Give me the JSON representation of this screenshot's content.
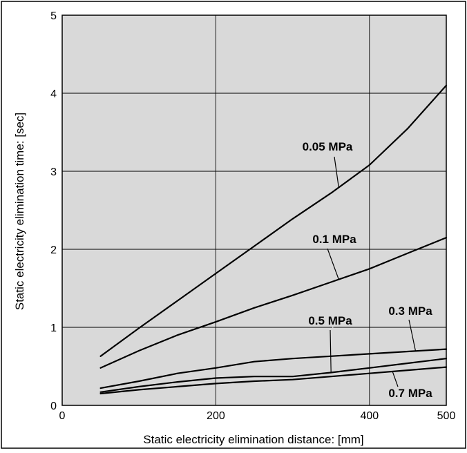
{
  "chart_data": {
    "type": "line",
    "xlabel": "Static electricity elimination distance: [mm]",
    "ylabel": "Static electricity elimination time: [sec]",
    "xlim": [
      0,
      500
    ],
    "ylim": [
      0,
      5
    ],
    "x_ticks": [
      "0",
      "200",
      "400",
      "500"
    ],
    "y_ticks": [
      "0",
      "1",
      "2",
      "3",
      "4",
      "5"
    ],
    "grid": true,
    "colors": {
      "plot_background": "#d9d9d9",
      "line": "#000000",
      "grid": "#000000"
    },
    "series": [
      {
        "name": "0.05 MPa",
        "x": [
          50,
          100,
          150,
          200,
          250,
          300,
          350,
          400,
          450,
          500
        ],
        "y": [
          0.63,
          0.99,
          1.34,
          1.69,
          2.04,
          2.39,
          2.72,
          3.08,
          3.55,
          4.1
        ]
      },
      {
        "name": "0.1 MPa",
        "x": [
          50,
          100,
          150,
          200,
          250,
          300,
          350,
          400,
          450,
          500
        ],
        "y": [
          0.48,
          0.7,
          0.9,
          1.07,
          1.25,
          1.41,
          1.58,
          1.75,
          1.95,
          2.15
        ]
      },
      {
        "name": "0.3 MPa",
        "x": [
          50,
          100,
          150,
          200,
          250,
          300,
          350,
          400,
          450,
          500
        ],
        "y": [
          0.22,
          0.31,
          0.41,
          0.48,
          0.56,
          0.6,
          0.63,
          0.66,
          0.69,
          0.72
        ]
      },
      {
        "name": "0.5 MPa",
        "x": [
          50,
          100,
          150,
          200,
          250,
          300,
          350,
          400,
          450,
          500
        ],
        "y": [
          0.17,
          0.24,
          0.3,
          0.35,
          0.37,
          0.37,
          0.42,
          0.48,
          0.54,
          0.6
        ]
      },
      {
        "name": "0.7 MPa",
        "x": [
          50,
          100,
          150,
          200,
          250,
          300,
          350,
          400,
          450,
          500
        ],
        "y": [
          0.15,
          0.2,
          0.24,
          0.28,
          0.31,
          0.33,
          0.37,
          0.41,
          0.45,
          0.49
        ]
      }
    ],
    "annotations": [
      {
        "text": "0.05 MPa",
        "series": 0,
        "at_x": 360
      },
      {
        "text": "0.1 MPa",
        "series": 1,
        "at_x": 360
      },
      {
        "text": "0.3 MPa",
        "series": 2,
        "at_x": 460
      },
      {
        "text": "0.5 MPa",
        "series": 3,
        "at_x": 350
      },
      {
        "text": "0.7 MPa",
        "series": 4,
        "at_x": 430
      }
    ]
  }
}
